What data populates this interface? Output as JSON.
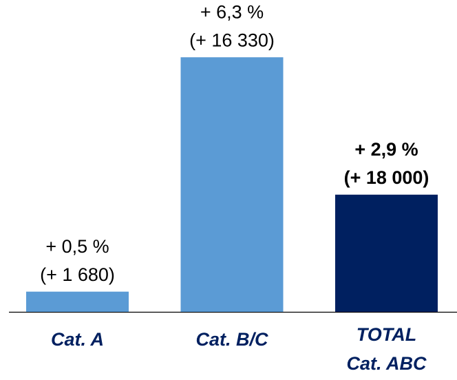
{
  "chart_data": {
    "type": "bar",
    "categories": [
      [
        "Cat. A"
      ],
      [
        "Cat. B/C"
      ],
      [
        "TOTAL",
        "Cat. ABC"
      ]
    ],
    "values": [
      0.5,
      6.3,
      2.9
    ],
    "value_labels": [
      "+ 0,5 %",
      "+ 6,3 %",
      "+ 2,9 %"
    ],
    "absolute_values": [
      1680,
      16330,
      18000
    ],
    "absolute_labels": [
      "(+ 1 680)",
      "(+ 16 330)",
      "(+ 18 000)"
    ],
    "colors": [
      "#5b9bd5",
      "#5b9bd5",
      "#002060"
    ]
  }
}
